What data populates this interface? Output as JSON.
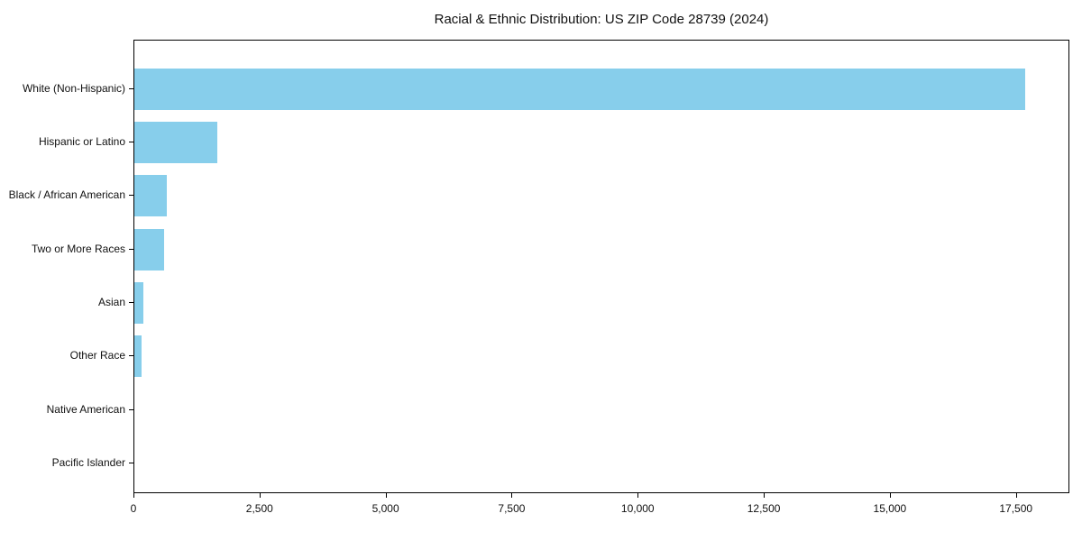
{
  "chart_data": {
    "type": "bar",
    "orientation": "horizontal",
    "title": "Racial & Ethnic Distribution: US ZIP Code 28739 (2024)",
    "xlabel": "",
    "ylabel": "",
    "categories": [
      "White (Non-Hispanic)",
      "Hispanic or Latino",
      "Black / African American",
      "Two or More Races",
      "Asian",
      "Other Race",
      "Native American",
      "Pacific Islander"
    ],
    "values": [
      17660,
      1640,
      640,
      590,
      170,
      150,
      0,
      0
    ],
    "xlim": [
      0,
      18560
    ],
    "xticks": [
      0,
      2500,
      5000,
      7500,
      10000,
      12500,
      15000,
      17500
    ],
    "xtick_labels": [
      "0",
      "2,500",
      "5,000",
      "7,500",
      "10,000",
      "12,500",
      "15,000",
      "17,500"
    ],
    "grid": false,
    "legend": null,
    "bar_color": "#87CEEB",
    "axis_color": "#000000",
    "background_color": "#ffffff"
  }
}
